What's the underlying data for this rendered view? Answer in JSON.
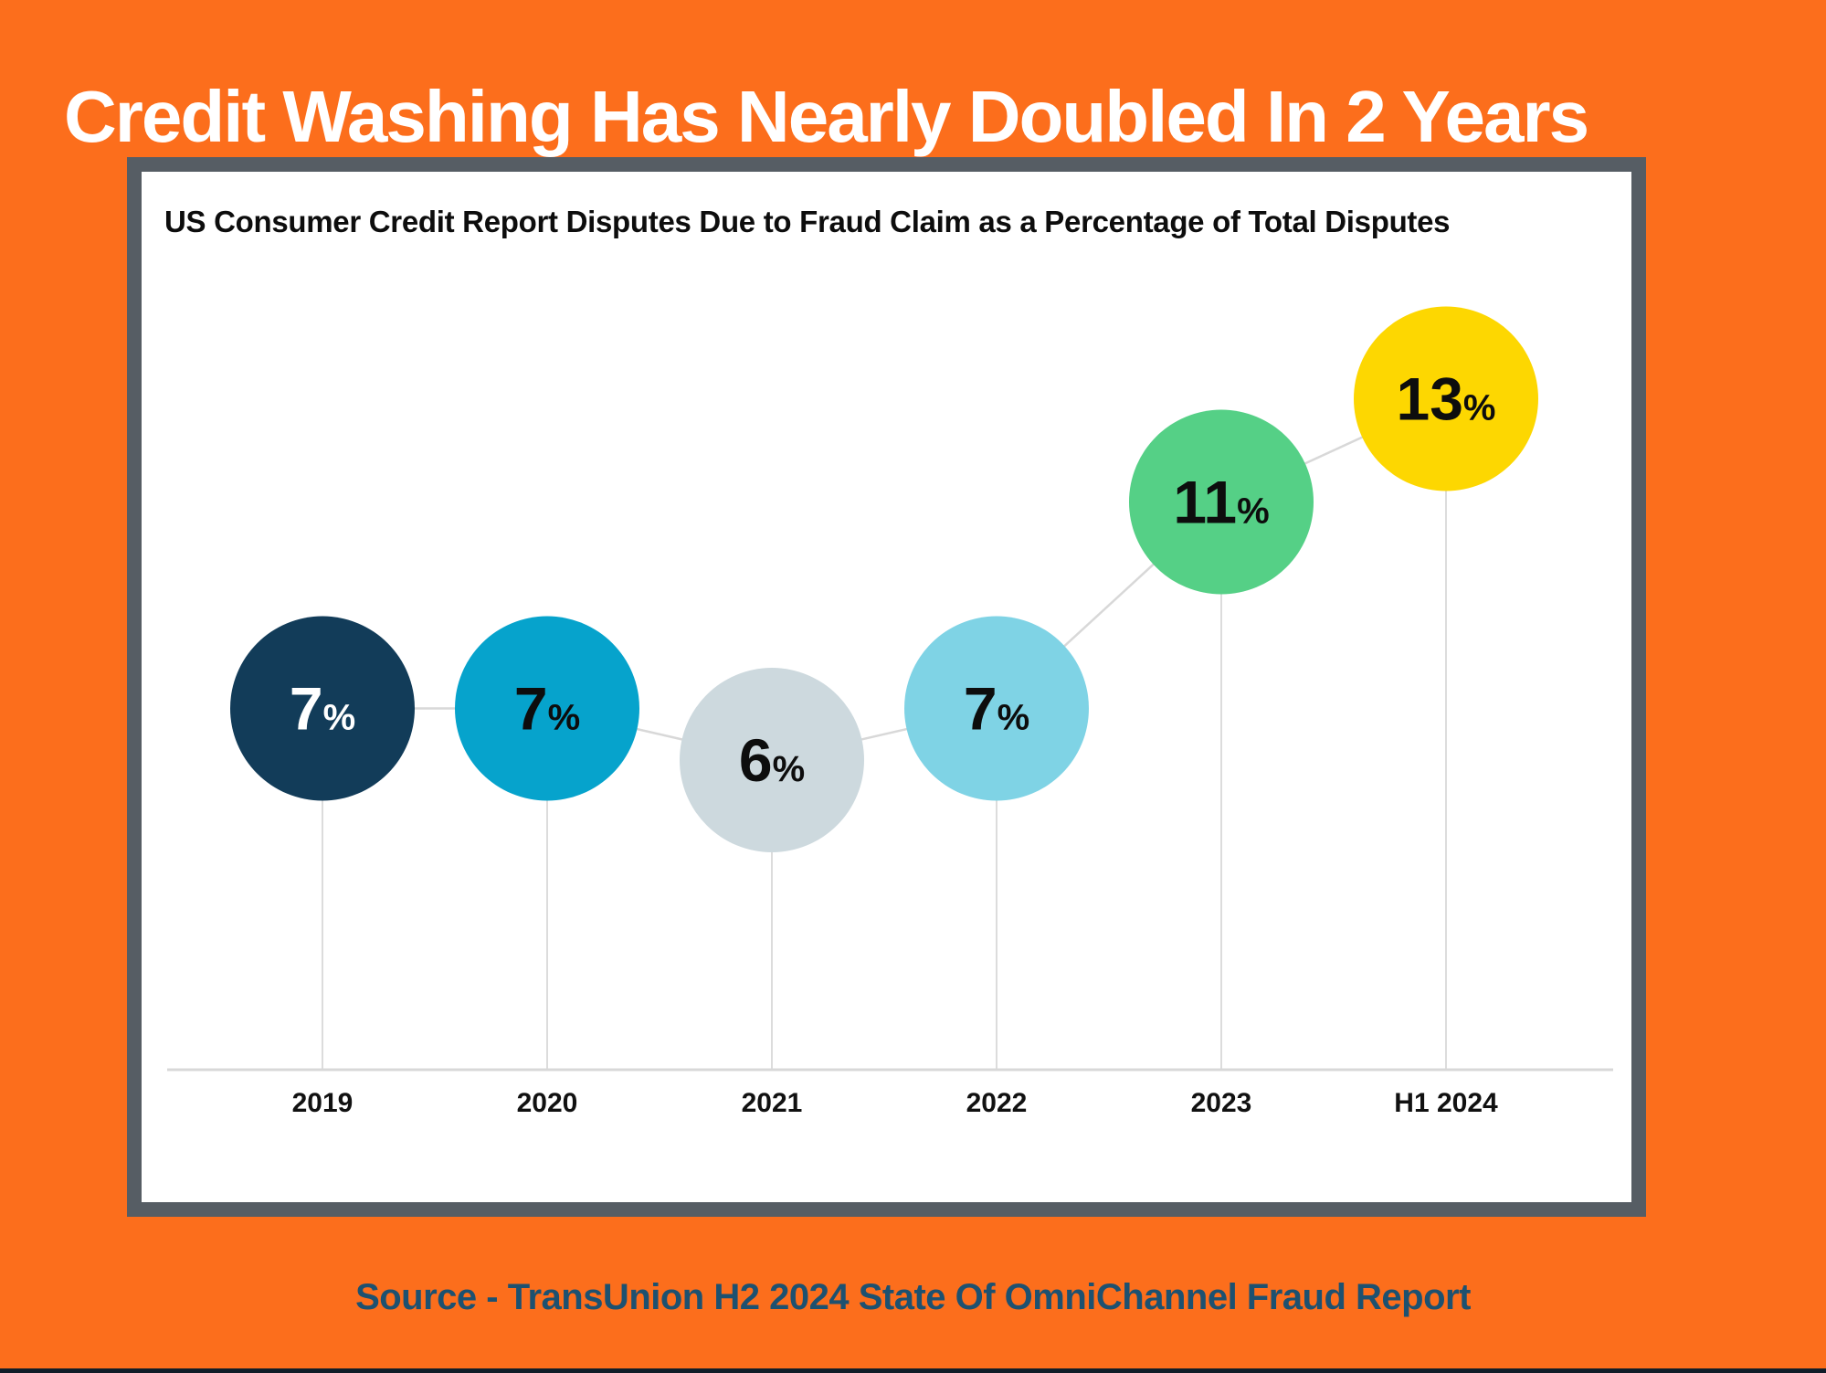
{
  "page": {
    "title": "Credit Washing Has Nearly Doubled In 2 Years",
    "source": "Source - TransUnion H2 2024 State Of OmniChannel Fraud Report"
  },
  "colors": {
    "background_orange": "#fc6e1c",
    "title_text": "#ffffff",
    "panel_border": "#565d64",
    "panel_background": "#ffffff",
    "subtitle_text": "#0d0d0d",
    "axis_line": "#d8d8d8",
    "connector_line": "#d8d8d8",
    "drop_line": "#dcdcdc",
    "tick_label_text": "#111111",
    "source_text": "#1d5170",
    "bottom_bar": "#101d29"
  },
  "chart_data": {
    "type": "bubble-line",
    "title": "US Consumer Credit Report Disputes Due to Fraud Claim as a Percentage of Total Disputes",
    "categories": [
      "2019",
      "2020",
      "2021",
      "2022",
      "2023",
      "H1 2024"
    ],
    "values": [
      7,
      7,
      6,
      7,
      11,
      13
    ],
    "unit": "%",
    "xlabel": "",
    "ylabel": "",
    "ylim": [
      0,
      18
    ],
    "grid": "off",
    "legend": "none",
    "points": [
      {
        "category": "2019",
        "value": 7,
        "value_label": "7",
        "fill": "#123c59",
        "label_color": "#ffffff"
      },
      {
        "category": "2020",
        "value": 7,
        "value_label": "7",
        "fill": "#06a3cc",
        "label_color": "#0d0d0d"
      },
      {
        "category": "2021",
        "value": 6,
        "value_label": "6",
        "fill": "#cdd9de",
        "label_color": "#0d0d0d"
      },
      {
        "category": "2022",
        "value": 7,
        "value_label": "7",
        "fill": "#7fd3e5",
        "label_color": "#0d0d0d"
      },
      {
        "category": "2023",
        "value": 11,
        "value_label": "11",
        "fill": "#55d086",
        "label_color": "#0d0d0d"
      },
      {
        "category": "H1 2024",
        "value": 13,
        "value_label": "13",
        "fill": "#fdd701",
        "label_color": "#0d0d0d"
      }
    ]
  }
}
